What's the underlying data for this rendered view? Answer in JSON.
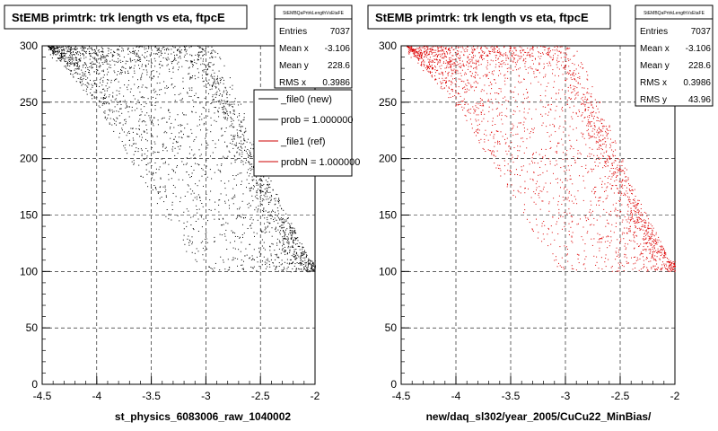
{
  "chart_data": [
    {
      "type": "scatter",
      "title": "StEMB primtrk: trk length vs eta, ftpcE",
      "xlabel": "st_physics_6083006_raw_1040002",
      "ylabel": "",
      "xlim": [
        -4.5,
        -2
      ],
      "ylim": [
        0,
        300
      ],
      "xticks": [
        -4.5,
        -4,
        -3.5,
        -3,
        -2.5,
        -2
      ],
      "yticks": [
        0,
        50,
        100,
        150,
        200,
        250,
        300
      ],
      "grid": true,
      "marker_color": "#000000",
      "stats": {
        "title": "StEMBQaPrtrkLengthVsEtaFE",
        "rows": [
          {
            "label": "Entries",
            "value": "7037"
          },
          {
            "label": "Mean x",
            "value": "-3.106"
          },
          {
            "label": "Mean y",
            "value": "228.6"
          },
          {
            "label": "RMS x",
            "value": "0.3986"
          }
        ]
      },
      "legend": {
        "placement": "top-right",
        "entries": [
          {
            "label": "_file0 (new)",
            "color": "#000000"
          },
          {
            "label": "prob = 1.000000",
            "color": "#000000"
          },
          {
            "label": "_file1 (ref)",
            "color": "#cc0000"
          },
          {
            "label": "probN = 1.000000",
            "color": "#cc0000"
          }
        ]
      },
      "distribution": {
        "lower_edge": [
          [
            -4.45,
            300
          ],
          [
            -3.95,
            240
          ],
          [
            -3.7,
            200
          ],
          [
            -3.45,
            160
          ],
          [
            -3.2,
            120
          ],
          [
            -3.05,
            100
          ],
          [
            -2.8,
            100
          ]
        ],
        "upper_edge": [
          [
            -4.45,
            300
          ],
          [
            -2.9,
            300
          ],
          [
            -2.6,
            230
          ],
          [
            -2.4,
            180
          ],
          [
            -2.2,
            140
          ],
          [
            -2.05,
            110
          ]
        ],
        "ridge": [
          [
            -3.05,
            300
          ],
          [
            -2.85,
            250
          ],
          [
            -2.65,
            215
          ],
          [
            -2.5,
            180
          ],
          [
            -2.35,
            150
          ],
          [
            -2.2,
            130
          ]
        ]
      }
    },
    {
      "type": "scatter",
      "title": "StEMB primtrk: trk length vs eta, ftpcE",
      "xlabel": "new/daq_sl302/year_2005/CuCu22_MinBias/",
      "ylabel": "",
      "xlim": [
        -4.5,
        -2
      ],
      "ylim": [
        0,
        300
      ],
      "xticks": [
        -4.5,
        -4,
        -3.5,
        -3,
        -2.5,
        -2
      ],
      "yticks": [
        0,
        50,
        100,
        150,
        200,
        250,
        300
      ],
      "grid": true,
      "marker_color": "#dd0000",
      "stats": {
        "title": "StEMBQaPrtrkLengthVsEtaFE",
        "rows": [
          {
            "label": "Entries",
            "value": "7037"
          },
          {
            "label": "Mean x",
            "value": "-3.106"
          },
          {
            "label": "Mean y",
            "value": "228.6"
          },
          {
            "label": "RMS x",
            "value": "0.3986"
          },
          {
            "label": "RMS y",
            "value": "43.96"
          }
        ]
      },
      "distribution": {
        "lower_edge": [
          [
            -4.45,
            300
          ],
          [
            -3.95,
            240
          ],
          [
            -3.7,
            200
          ],
          [
            -3.45,
            160
          ],
          [
            -3.2,
            120
          ],
          [
            -3.05,
            100
          ],
          [
            -2.8,
            100
          ]
        ],
        "upper_edge": [
          [
            -4.45,
            300
          ],
          [
            -2.9,
            300
          ],
          [
            -2.6,
            230
          ],
          [
            -2.4,
            180
          ],
          [
            -2.2,
            140
          ],
          [
            -2.05,
            110
          ]
        ],
        "ridge": [
          [
            -3.05,
            300
          ],
          [
            -2.85,
            250
          ],
          [
            -2.65,
            215
          ],
          [
            -2.5,
            180
          ],
          [
            -2.35,
            150
          ],
          [
            -2.2,
            130
          ]
        ]
      }
    }
  ]
}
